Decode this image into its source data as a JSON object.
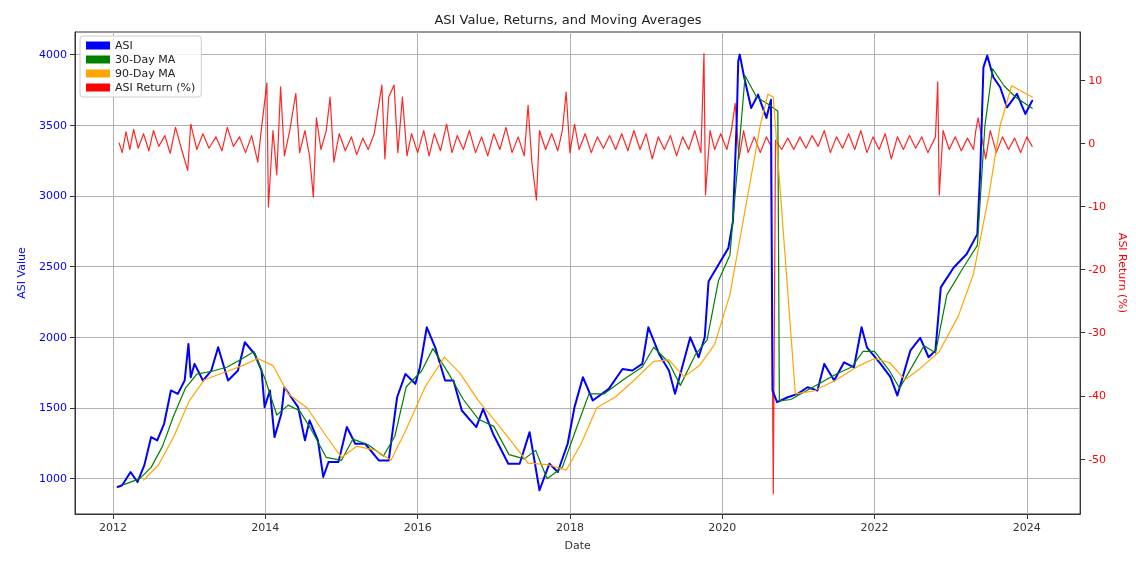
{
  "chart_data": {
    "type": "line",
    "title": "ASI Value, Returns, and Moving Averages",
    "xlabel": "Date",
    "ylabel": "ASI Value",
    "y2label": "ASI Return (%)",
    "xlim": [
      2011.5,
      2024.7
    ],
    "xticks": [
      2012,
      2014,
      2016,
      2018,
      2020,
      2022,
      2024
    ],
    "ylim": [
      750,
      4160
    ],
    "yticks": [
      1000,
      1500,
      2000,
      2500,
      3000,
      3500,
      4000
    ],
    "y2lim": [
      -58.7,
      17.6
    ],
    "y2ticks": [
      -50,
      -40,
      -30,
      -20,
      -10,
      0,
      10
    ],
    "grid": true,
    "legend": "top left",
    "marker": "none",
    "line_style": "solid",
    "series": [
      {
        "name": "ASI",
        "color": "#0000ff",
        "x": [
          2012.06,
          2012.12,
          2012.23,
          2012.32,
          2012.41,
          2012.5,
          2012.58,
          2012.67,
          2012.76,
          2012.85,
          2012.94,
          2012.99,
          2013.02,
          2013.07,
          2013.18,
          2013.29,
          2013.38,
          2013.51,
          2013.64,
          2013.73,
          2013.86,
          2013.95,
          2013.99,
          2014.06,
          2014.12,
          2014.21,
          2014.25,
          2014.34,
          2014.43,
          2014.52,
          2014.58,
          2014.69,
          2014.76,
          2014.83,
          2014.96,
          2015.07,
          2015.18,
          2015.31,
          2015.49,
          2015.62,
          2015.73,
          2015.84,
          2015.97,
          2016.03,
          2016.12,
          2016.23,
          2016.36,
          2016.47,
          2016.58,
          2016.77,
          2016.86,
          2016.99,
          2017.19,
          2017.34,
          2017.47,
          2017.6,
          2017.73,
          2017.84,
          2017.97,
          2018.06,
          2018.17,
          2018.3,
          2018.51,
          2018.69,
          2018.82,
          2018.95,
          2019.03,
          2019.17,
          2019.3,
          2019.38,
          2019.58,
          2019.69,
          2019.77,
          2019.82,
          2019.95,
          2020.08,
          2020.14,
          2020.19,
          2020.21,
          2020.23,
          2020.29,
          2020.38,
          2020.47,
          2020.58,
          2020.64,
          2020.66,
          2020.72,
          2020.86,
          2020.99,
          2021.12,
          2021.25,
          2021.34,
          2021.47,
          2021.6,
          2021.73,
          2021.83,
          2021.9,
          2022.08,
          2022.21,
          2022.3,
          2022.47,
          2022.6,
          2022.71,
          2022.8,
          2022.87,
          2023.04,
          2023.21,
          2023.35,
          2023.39,
          2023.43,
          2023.48,
          2023.56,
          2023.65,
          2023.74,
          2023.87,
          2023.98,
          2024.07
        ],
        "values": [
          941,
          953,
          1047,
          976,
          1094,
          1294,
          1271,
          1388,
          1624,
          1600,
          1694,
          1953,
          1718,
          1812,
          1694,
          1765,
          1930,
          1694,
          1765,
          1965,
          1882,
          1765,
          1506,
          1624,
          1294,
          1459,
          1647,
          1576,
          1506,
          1271,
          1412,
          1271,
          1012,
          1118,
          1118,
          1365,
          1247,
          1247,
          1129,
          1129,
          1576,
          1741,
          1671,
          1788,
          2071,
          1929,
          1694,
          1694,
          1482,
          1365,
          1494,
          1318,
          1106,
          1106,
          1329,
          918,
          1106,
          1047,
          1247,
          1506,
          1718,
          1553,
          1635,
          1776,
          1765,
          1812,
          2071,
          1882,
          1765,
          1600,
          2000,
          1859,
          2000,
          2395,
          2513,
          2631,
          2820,
          3528,
          3953,
          4000,
          3835,
          3622,
          3717,
          3552,
          3681,
          1624,
          1541,
          1576,
          1600,
          1647,
          1624,
          1812,
          1694,
          1823,
          1788,
          2071,
          1929,
          1812,
          1718,
          1588,
          1906,
          1996,
          1859,
          1906,
          2353,
          2494,
          2589,
          2730,
          3202,
          3910,
          3993,
          3840,
          3769,
          3627,
          3722,
          3580,
          3674
        ]
      },
      {
        "name": "30-Day MA",
        "color": "#008000",
        "x": [
          2012.15,
          2012.35,
          2012.5,
          2012.65,
          2012.8,
          2012.95,
          2013.1,
          2013.3,
          2013.5,
          2013.7,
          2013.85,
          2014.0,
          2014.15,
          2014.3,
          2014.45,
          2014.6,
          2014.8,
          2015.0,
          2015.15,
          2015.35,
          2015.55,
          2015.7,
          2015.85,
          2016.05,
          2016.2,
          2016.4,
          2016.6,
          2016.8,
          2017.0,
          2017.2,
          2017.4,
          2017.55,
          2017.7,
          2017.9,
          2018.1,
          2018.25,
          2018.45,
          2018.7,
          2018.95,
          2019.1,
          2019.3,
          2019.45,
          2019.65,
          2019.8,
          2019.95,
          2020.1,
          2020.2,
          2020.3,
          2020.45,
          2020.6,
          2020.73,
          2020.75,
          2020.9,
          2021.1,
          2021.3,
          2021.5,
          2021.7,
          2021.85,
          2022.0,
          2022.2,
          2022.33,
          2022.5,
          2022.65,
          2022.8,
          2022.95,
          2023.15,
          2023.35,
          2023.45,
          2023.55,
          2023.7,
          2023.85,
          2024.07
        ],
        "values": [
          960,
          1000,
          1080,
          1230,
          1450,
          1640,
          1740,
          1760,
          1790,
          1850,
          1900,
          1700,
          1450,
          1520,
          1480,
          1350,
          1150,
          1130,
          1280,
          1240,
          1160,
          1300,
          1650,
          1760,
          1920,
          1750,
          1560,
          1420,
          1370,
          1170,
          1140,
          1200,
          1000,
          1080,
          1380,
          1600,
          1600,
          1700,
          1790,
          1930,
          1820,
          1660,
          1880,
          1980,
          2400,
          2580,
          3200,
          3850,
          3700,
          3650,
          3600,
          1550,
          1560,
          1620,
          1680,
          1740,
          1790,
          1900,
          1900,
          1760,
          1640,
          1800,
          1940,
          1890,
          2300,
          2480,
          2650,
          3500,
          3900,
          3780,
          3700,
          3620
        ]
      },
      {
        "name": "90-Day MA",
        "color": "#ffa500",
        "x": [
          2012.4,
          2012.6,
          2012.8,
          2013.0,
          2013.2,
          2013.5,
          2013.7,
          2013.9,
          2014.1,
          2014.3,
          2014.55,
          2014.8,
          2015.0,
          2015.2,
          2015.45,
          2015.65,
          2015.85,
          2016.1,
          2016.35,
          2016.55,
          2016.8,
          2017.0,
          2017.25,
          2017.45,
          2017.7,
          2017.95,
          2018.15,
          2018.35,
          2018.6,
          2018.85,
          2019.1,
          2019.3,
          2019.5,
          2019.7,
          2019.9,
          2020.1,
          2020.3,
          2020.5,
          2020.6,
          2020.67,
          2020.96,
          2021.2,
          2021.5,
          2021.8,
          2022.0,
          2022.2,
          2022.4,
          2022.6,
          2022.85,
          2023.1,
          2023.3,
          2023.5,
          2023.65,
          2023.8,
          2024.07
        ],
        "values": [
          990,
          1100,
          1300,
          1550,
          1700,
          1760,
          1800,
          1850,
          1800,
          1600,
          1500,
          1300,
          1150,
          1230,
          1200,
          1130,
          1350,
          1650,
          1860,
          1750,
          1550,
          1420,
          1250,
          1110,
          1100,
          1060,
          1250,
          1500,
          1580,
          1700,
          1830,
          1840,
          1720,
          1800,
          1950,
          2300,
          2900,
          3500,
          3720,
          3700,
          1600,
          1620,
          1700,
          1800,
          1850,
          1820,
          1700,
          1780,
          1900,
          2150,
          2450,
          3000,
          3500,
          3780,
          3700
        ]
      },
      {
        "name": "ASI Return (%)",
        "color": "#ff0000",
        "axis": "y2",
        "x": [
          2012.08,
          2012.12,
          2012.17,
          2012.22,
          2012.27,
          2012.33,
          2012.4,
          2012.47,
          2012.53,
          2012.6,
          2012.68,
          2012.75,
          2012.82,
          2012.9,
          2012.98,
          2013.02,
          2013.1,
          2013.18,
          2013.26,
          2013.35,
          2013.43,
          2013.5,
          2013.58,
          2013.66,
          2013.74,
          2013.82,
          2013.9,
          2013.96,
          2014.02,
          2014.04,
          2014.1,
          2014.15,
          2014.2,
          2014.25,
          2014.32,
          2014.4,
          2014.45,
          2014.52,
          2014.58,
          2014.63,
          2014.67,
          2014.73,
          2014.8,
          2014.85,
          2014.9,
          2014.97,
          2015.05,
          2015.13,
          2015.2,
          2015.28,
          2015.35,
          2015.43,
          2015.53,
          2015.57,
          2015.62,
          2015.69,
          2015.74,
          2015.8,
          2015.86,
          2015.92,
          2016.0,
          2016.08,
          2016.15,
          2016.22,
          2016.3,
          2016.38,
          2016.45,
          2016.52,
          2016.6,
          2016.68,
          2016.76,
          2016.84,
          2016.92,
          2017.0,
          2017.08,
          2017.16,
          2017.24,
          2017.32,
          2017.4,
          2017.45,
          2017.5,
          2017.56,
          2017.6,
          2017.68,
          2017.76,
          2017.84,
          2017.9,
          2017.95,
          2018.0,
          2018.06,
          2018.12,
          2018.2,
          2018.28,
          2018.36,
          2018.44,
          2018.52,
          2018.6,
          2018.68,
          2018.76,
          2018.84,
          2018.92,
          2019.0,
          2019.08,
          2019.16,
          2019.24,
          2019.32,
          2019.4,
          2019.48,
          2019.56,
          2019.64,
          2019.72,
          2019.76,
          2019.78,
          2019.84,
          2019.9,
          2019.98,
          2020.06,
          2020.12,
          2020.17,
          2020.22,
          2020.28,
          2020.34,
          2020.42,
          2020.5,
          2020.58,
          2020.64,
          2020.67,
          2020.7,
          2020.78,
          2020.86,
          2020.94,
          2021.02,
          2021.1,
          2021.18,
          2021.26,
          2021.34,
          2021.42,
          2021.5,
          2021.58,
          2021.66,
          2021.74,
          2021.82,
          2021.9,
          2021.98,
          2022.06,
          2022.14,
          2022.22,
          2022.3,
          2022.38,
          2022.46,
          2022.54,
          2022.62,
          2022.7,
          2022.8,
          2022.83,
          2022.85,
          2022.9,
          2022.98,
          2023.06,
          2023.14,
          2023.22,
          2023.3,
          2023.33,
          2023.36,
          2023.46,
          2023.52,
          2023.6,
          2023.68,
          2023.76,
          2023.84,
          2023.92,
          2024.0,
          2024.07
        ],
        "values": [
          0,
          -1.5,
          1.8,
          -1,
          2.2,
          -0.8,
          1.5,
          -1.2,
          2,
          -0.5,
          1.2,
          -1.6,
          2.5,
          -1,
          -4.3,
          3,
          -1,
          1.5,
          -0.8,
          1,
          -1.2,
          2.5,
          -0.5,
          1,
          -1.5,
          1.2,
          -3,
          3.5,
          9.5,
          -10.1,
          2,
          -5,
          8.9,
          -2,
          2,
          7.9,
          -1.5,
          2,
          -2,
          -8.5,
          4,
          -1,
          2,
          7.3,
          -3,
          1.5,
          -1.2,
          1,
          -1.8,
          0.8,
          -1,
          1.5,
          9.2,
          -2.5,
          7.3,
          9.2,
          -1.5,
          7.3,
          -2,
          1.5,
          -1.5,
          2,
          -2,
          1.5,
          -1.2,
          3,
          -1.5,
          1.2,
          -1,
          2,
          -1.5,
          1,
          -2,
          1.5,
          -1,
          2.5,
          -1.5,
          1,
          -2,
          6,
          -3,
          -9,
          2,
          -1,
          1.5,
          -1.2,
          2,
          8.1,
          -1.5,
          3,
          -1,
          1.5,
          -1.5,
          1,
          -0.8,
          1.2,
          -1,
          1.5,
          -1.2,
          2,
          -1,
          1.5,
          -2.5,
          1,
          -1,
          1.2,
          -2,
          1,
          -1,
          2,
          -1.5,
          14.2,
          -8.2,
          2,
          -1,
          1.5,
          -1,
          2,
          6.3,
          -2.5,
          2,
          -1.5,
          1,
          -1.5,
          1,
          -0.5,
          -55.5,
          0.5,
          -1,
          0.8,
          -1,
          1,
          -0.8,
          1.2,
          -0.5,
          2,
          -1.5,
          1,
          -0.8,
          1.5,
          -1,
          2,
          -1.5,
          1,
          -1,
          1.5,
          -2.5,
          1,
          -1,
          1.2,
          -0.8,
          1,
          -1.5,
          1,
          9.7,
          -8.2,
          2,
          -1,
          1,
          -1.2,
          0.8,
          -1,
          2,
          4,
          -2.5,
          2,
          -1.5,
          1,
          -1,
          0.8,
          -1.5,
          1,
          -0.5
        ]
      }
    ]
  }
}
